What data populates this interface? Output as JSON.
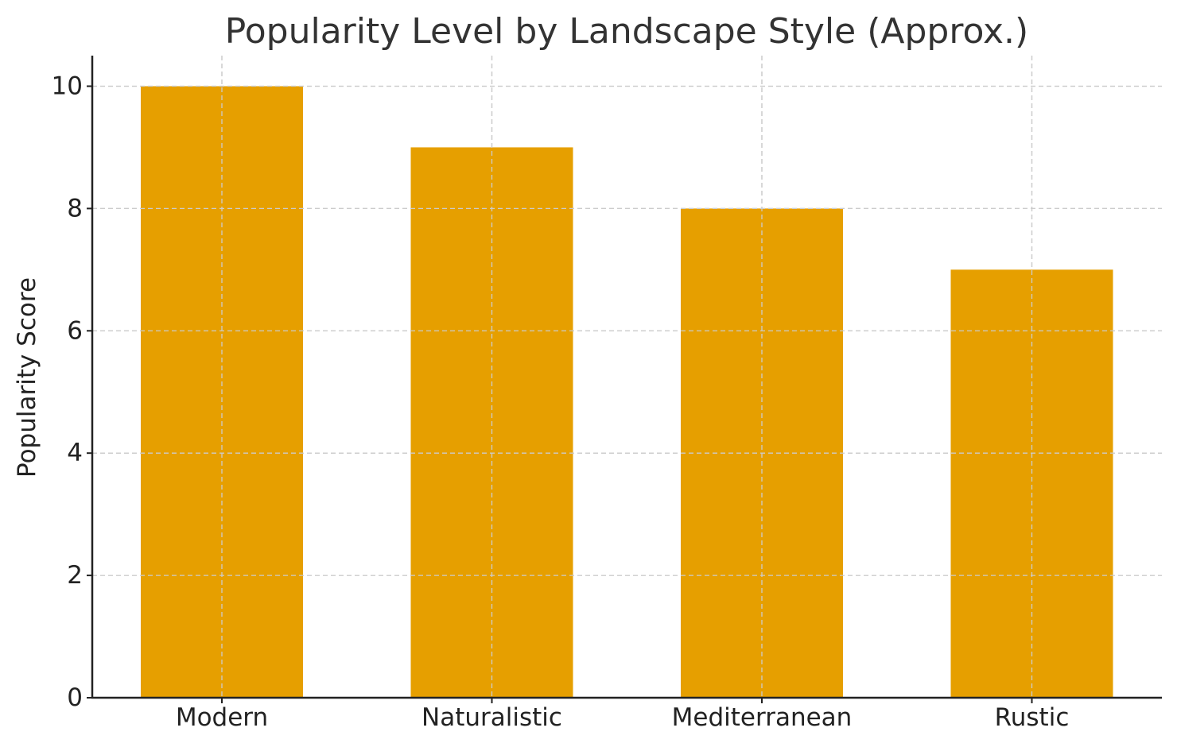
{
  "chart_data": {
    "type": "bar",
    "title": "Popularity Level by Landscape Style (Approx.)",
    "xlabel": "",
    "ylabel": "Popularity Score",
    "categories": [
      "Modern",
      "Naturalistic",
      "Mediterranean",
      "Rustic"
    ],
    "values": [
      10,
      9,
      8,
      7
    ],
    "ylim": [
      0,
      10.5
    ],
    "yticks": [
      0,
      2,
      4,
      6,
      8,
      10
    ],
    "grid": true,
    "bar_color": "#E69F00"
  }
}
